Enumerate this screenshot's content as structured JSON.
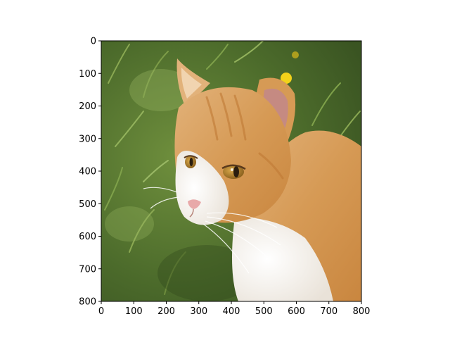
{
  "chart_data": {
    "type": "image",
    "title": "",
    "xlabel": "",
    "ylabel": "",
    "xlim": [
      0,
      800
    ],
    "ylim": [
      800,
      0
    ],
    "y_inverted": true,
    "x_ticks": [
      0,
      100,
      200,
      300,
      400,
      500,
      600,
      700,
      800
    ],
    "y_ticks": [
      0,
      100,
      200,
      300,
      400,
      500,
      600,
      700,
      800
    ],
    "subject": "orange-and-white cat on grass",
    "colors": {
      "grass_dark": "#3d5a24",
      "grass_mid": "#5f7f35",
      "grass_light": "#7fa14a",
      "fur_orange": "#d69a55",
      "fur_light": "#ecc594",
      "fur_white": "#f4efe9",
      "eye": "#b8862c",
      "nose": "#e8a9a9",
      "flower": "#f2d21a"
    }
  }
}
